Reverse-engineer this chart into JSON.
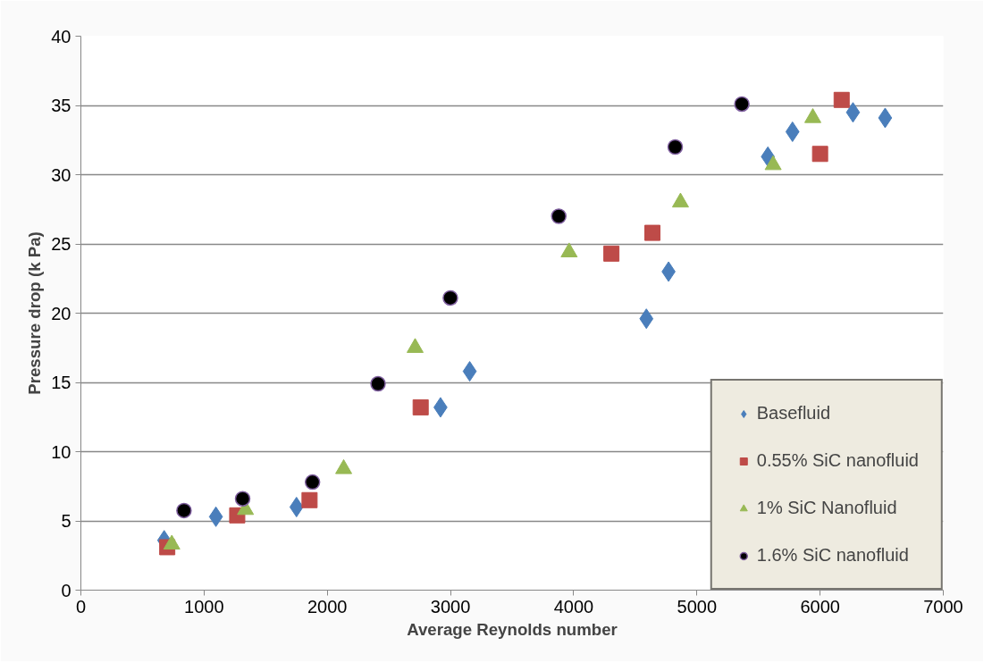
{
  "chart_data": {
    "type": "scatter",
    "xlabel": "Average Reynolds number",
    "ylabel": "Pressure drop (k Pa)",
    "xlim": [
      0,
      7000
    ],
    "xticks": [
      0,
      1000,
      2000,
      3000,
      4000,
      5000,
      6000,
      7000
    ],
    "ylim": [
      0,
      40
    ],
    "yticks": [
      0,
      5,
      10,
      15,
      20,
      25,
      30,
      35,
      40
    ],
    "grid": "y",
    "legend": "bottom right",
    "series": [
      {
        "name": "Basefluid",
        "color": "#4a7ebb",
        "marker": "diamond",
        "x": [
          676,
          1096,
          1750,
          2919,
          3156,
          4590,
          4770,
          5576,
          5776,
          6267,
          6528
        ],
        "values": [
          3.6,
          5.3,
          6.0,
          13.2,
          15.8,
          19.6,
          23.0,
          31.3,
          33.1,
          34.5,
          34.1
        ]
      },
      {
        "name": "0.55% SiC nanofluid",
        "color": "#be4b48",
        "marker": "square",
        "x": [
          701,
          1269,
          1856,
          2758,
          4306,
          4639,
          6000,
          6175
        ],
        "values": [
          3.1,
          5.4,
          6.5,
          13.2,
          24.3,
          25.8,
          31.5,
          35.4
        ]
      },
      {
        "name": "1% SiC Nanofluid",
        "color": "#98b954",
        "marker": "triangle",
        "x": [
          738,
          1336,
          2133,
          2713,
          3963,
          4867,
          5619,
          5941
        ],
        "values": [
          3.3,
          5.8,
          8.75,
          17.5,
          24.4,
          28.0,
          30.7,
          34.1
        ]
      },
      {
        "name": "1.6% SiC nanofluid",
        "color": "#000000",
        "marker": "circle",
        "x": [
          837,
          1313,
          1880,
          2412,
          2999,
          3879,
          4824,
          5365
        ],
        "values": [
          5.75,
          6.6,
          7.8,
          14.9,
          21.1,
          27.0,
          32.0,
          35.1
        ]
      }
    ]
  }
}
